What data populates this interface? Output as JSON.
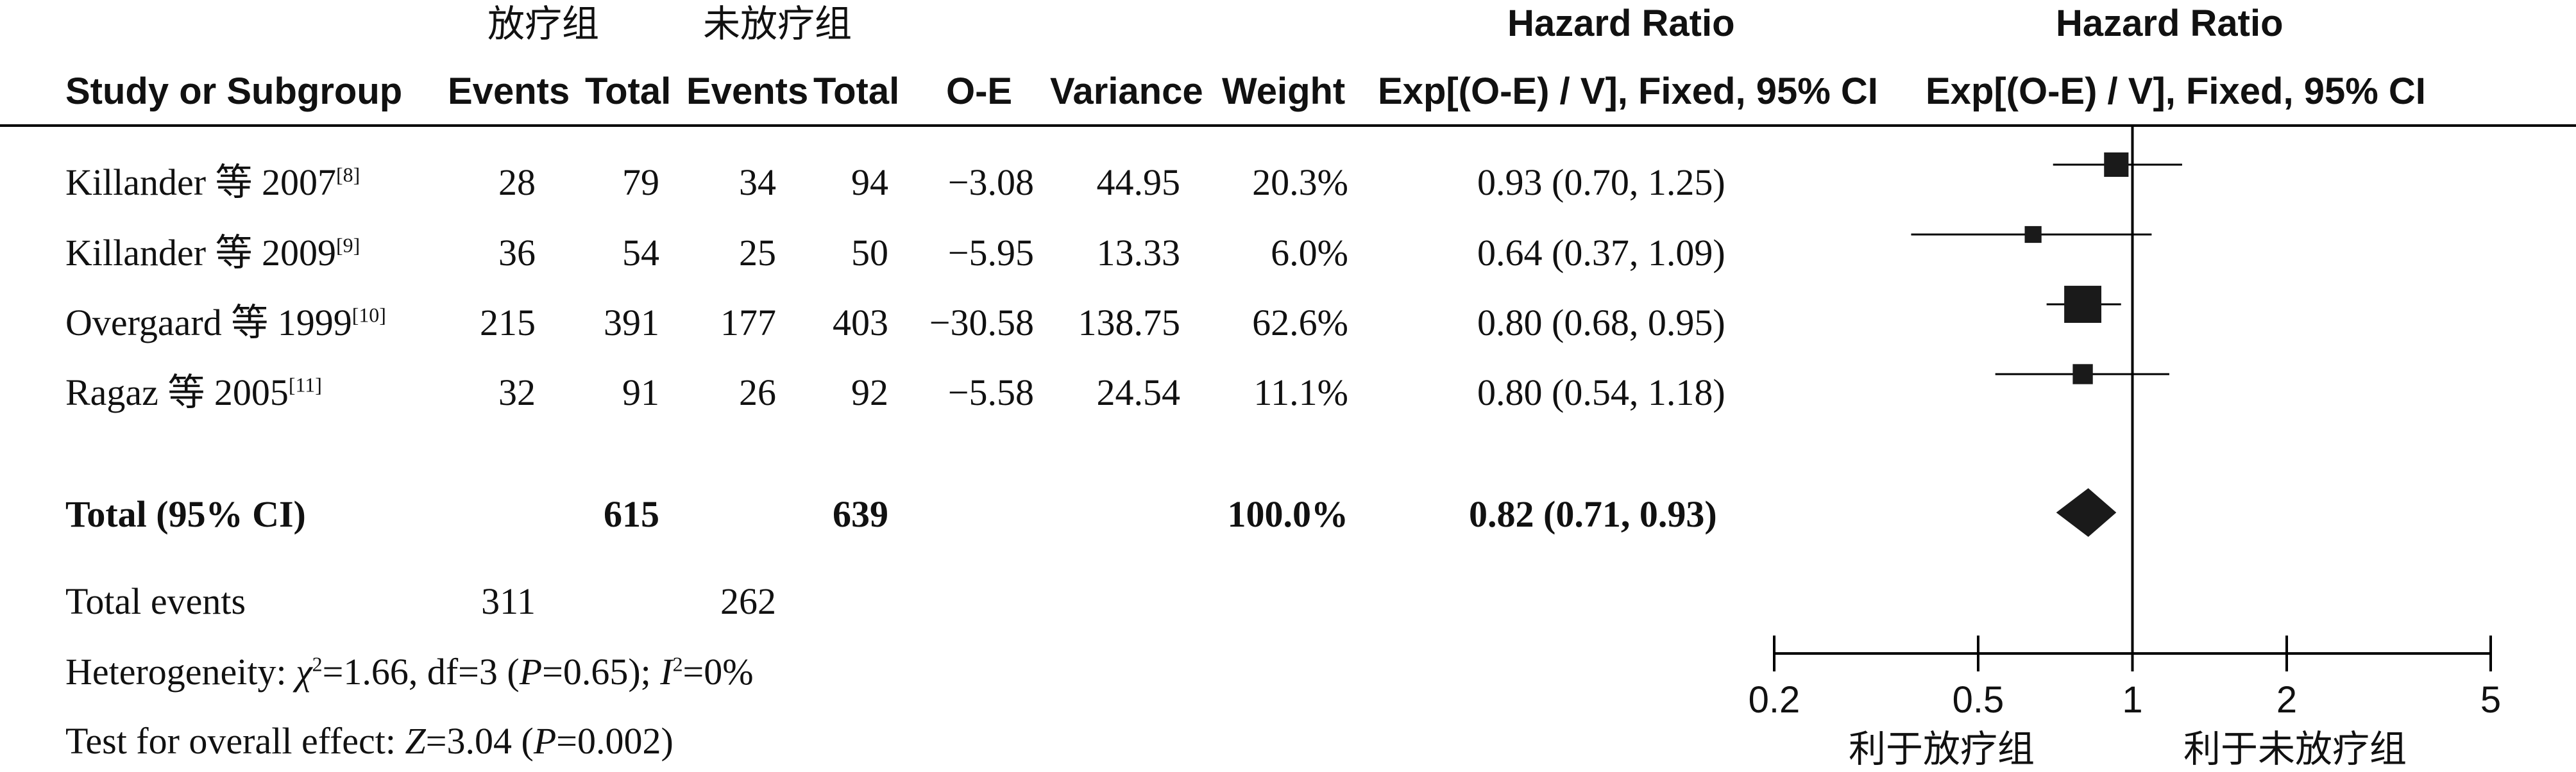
{
  "header": {
    "group1": "放疗组",
    "group2": "未放疗组",
    "hr_title_left": "Hazard Ratio",
    "hr_title_right": "Hazard Ratio",
    "col_study": "Study or Subgroup",
    "col_events1": "Events",
    "col_total1": "Total",
    "col_events2": "Events",
    "col_total2": "Total",
    "col_oe": "O-E",
    "col_variance": "Variance",
    "col_weight": "Weight",
    "col_hr_left": "Exp[(O-E) / V], Fixed, 95% CI",
    "col_hr_right": "Exp[(O-E) / V], Fixed, 95% CI"
  },
  "rows": [
    {
      "study": "Killander 等 2007",
      "ref": "[8]",
      "events1": "28",
      "total1": "79",
      "events2": "34",
      "total2": "94",
      "oe": "−3.08",
      "variance": "44.95",
      "weight": "20.3%",
      "ci": "0.93 (0.70, 1.25)"
    },
    {
      "study": "Killander 等 2009",
      "ref": "[9]",
      "events1": "36",
      "total1": "54",
      "events2": "25",
      "total2": "50",
      "oe": "−5.95",
      "variance": "13.33",
      "weight": "6.0%",
      "ci": "0.64 (0.37, 1.09)"
    },
    {
      "study": "Overgaard 等 1999",
      "ref": "[10]",
      "events1": "215",
      "total1": "391",
      "events2": "177",
      "total2": "403",
      "oe": "−30.58",
      "variance": "138.75",
      "weight": "62.6%",
      "ci": "0.80 (0.68, 0.95)"
    },
    {
      "study": "Ragaz 等 2005",
      "ref": "[11]",
      "events1": "32",
      "total1": "91",
      "events2": "26",
      "total2": "92",
      "oe": "−5.58",
      "variance": "24.54",
      "weight": "11.1%",
      "ci": "0.80 (0.54, 1.18)"
    }
  ],
  "total": {
    "label": "Total (95% CI)",
    "total1": "615",
    "total2": "639",
    "weight": "100.0%",
    "ci": "0.82 (0.71, 0.93)"
  },
  "total_events": {
    "label": "Total events",
    "events1": "311",
    "events2": "262"
  },
  "heterogeneity": {
    "prefix": "Heterogeneity: ",
    "chi_symbol": "χ",
    "chi_sup": "2",
    "chi_value": "=1.66, df=3 (",
    "p_symbol": "P",
    "p_value": "=0.65); ",
    "i_symbol": "I",
    "i_sup": "2",
    "i_value": "=0%"
  },
  "overall": {
    "prefix": "Test for overall effect: ",
    "z_symbol": "Z",
    "z_value": "=3.04 (",
    "p_symbol": "P",
    "p_value": "=0.002)"
  },
  "favors": {
    "left": "利于放疗组",
    "right": "利于未放疗组"
  },
  "chart_data": {
    "type": "forest",
    "scale": "log",
    "xlim": [
      0.2,
      5
    ],
    "ticks": [
      0.2,
      0.5,
      1,
      2,
      5
    ],
    "tick_labels": [
      "0.2",
      "0.5",
      "1",
      "2",
      "5"
    ],
    "null_value": 1,
    "studies": [
      {
        "name": "Killander 等 2007",
        "hr": 0.93,
        "lower": 0.7,
        "upper": 1.25,
        "weight": 20.3
      },
      {
        "name": "Killander 等 2009",
        "hr": 0.64,
        "lower": 0.37,
        "upper": 1.09,
        "weight": 6.0
      },
      {
        "name": "Overgaard 等 1999",
        "hr": 0.8,
        "lower": 0.68,
        "upper": 0.95,
        "weight": 62.6
      },
      {
        "name": "Ragaz 等 2005",
        "hr": 0.8,
        "lower": 0.54,
        "upper": 1.18,
        "weight": 11.1
      }
    ],
    "pooled": {
      "name": "Total (95% CI)",
      "hr": 0.82,
      "lower": 0.71,
      "upper": 0.93
    },
    "colors": {
      "marker": "#1a1a1a",
      "line": "#000000"
    }
  }
}
